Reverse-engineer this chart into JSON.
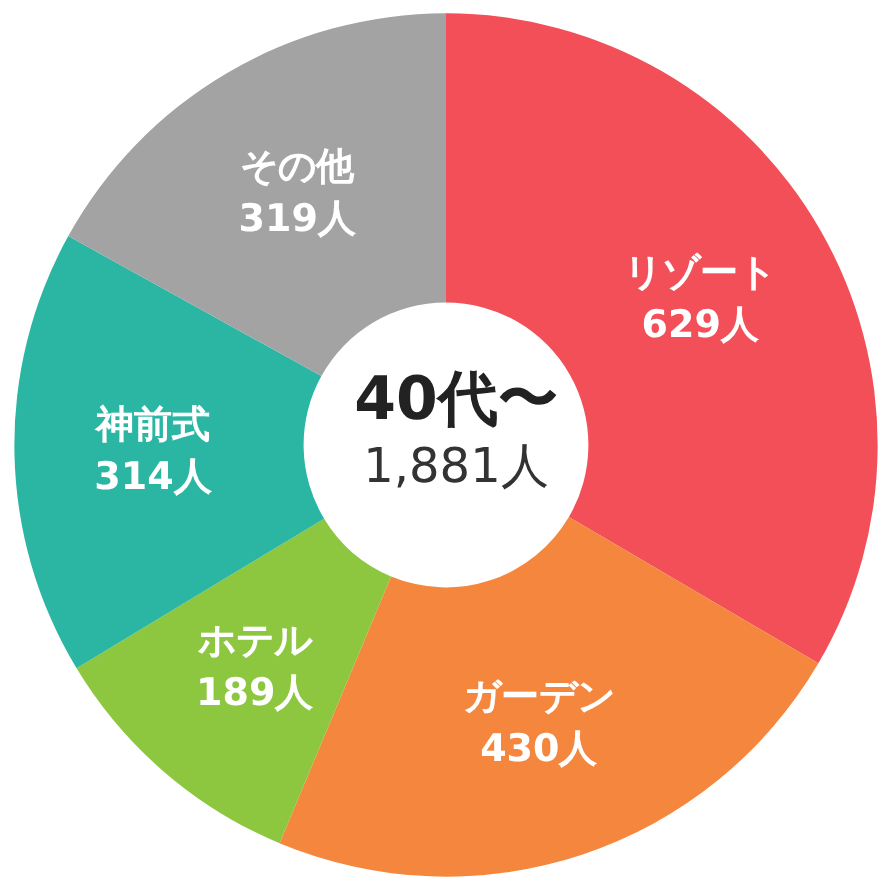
{
  "chart_data": {
    "type": "donut",
    "title": "40代〜",
    "subtitle": "1,881人",
    "categories": [
      "リゾート",
      "ガーデン",
      "ホテル",
      "神前式",
      "その他"
    ],
    "values": [
      629,
      430,
      189,
      314,
      319
    ],
    "colors": [
      "#f24f58",
      "#f4873d",
      "#8dc63f",
      "#2bb6a3",
      "#a3a3a3"
    ],
    "value_labels": [
      "629人",
      "430人",
      "189人",
      "314人",
      "319人"
    ],
    "legend": false
  }
}
